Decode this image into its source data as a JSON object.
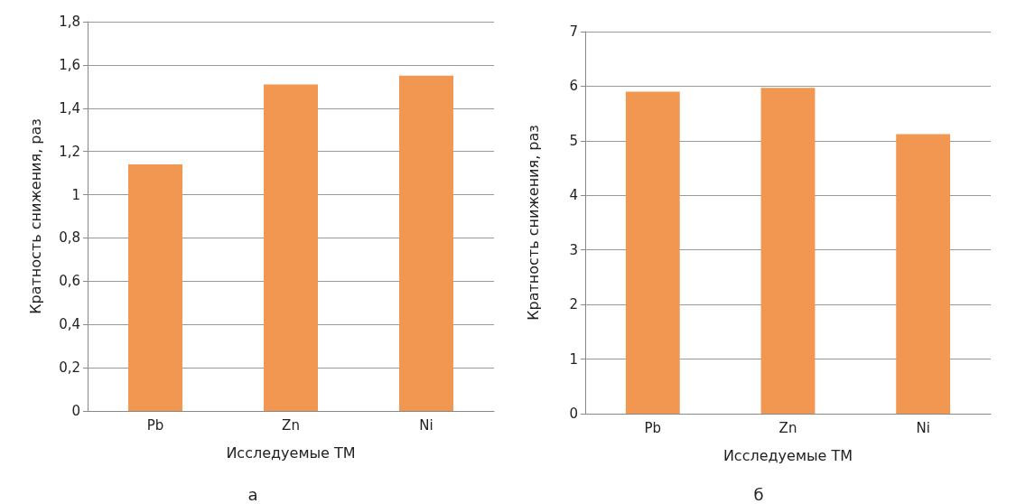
{
  "chart_data": [
    {
      "type": "bar",
      "xlabel": "Исследуемые ТМ",
      "ylabel": "Кратность снижения, раз",
      "categories": [
        "Pb",
        "Zn",
        "Ni"
      ],
      "values": [
        1.14,
        1.51,
        1.55
      ],
      "color": "#f29751",
      "ylim": [
        0,
        1.8
      ],
      "yticks": [
        0,
        {
          "value": 0.2,
          "label": "0,2"
        },
        {
          "value": 0.4,
          "label": "0,4"
        },
        {
          "value": 0.6,
          "label": "0,6"
        },
        {
          "value": 0.8,
          "label": "0,8"
        },
        1,
        {
          "value": 1.2,
          "label": "1,2"
        },
        {
          "value": 1.4,
          "label": "1,4"
        },
        {
          "value": 1.6,
          "label": "1,6"
        },
        {
          "value": 1.8,
          "label": "1,8"
        }
      ],
      "grid": "y",
      "annotations": [
        "а"
      ]
    },
    {
      "type": "bar",
      "xlabel": "Исследуемые ТМ",
      "ylabel": "Кратность снижения, раз",
      "categories": [
        "Pb",
        "Zn",
        "Ni"
      ],
      "values": [
        5.9,
        5.97,
        5.12
      ],
      "color": "#f29751",
      "ylim": [
        0,
        7
      ],
      "yticks": [
        0,
        1,
        2,
        3,
        4,
        5,
        6,
        7
      ],
      "grid": "y",
      "annotations": [
        "б"
      ]
    }
  ]
}
